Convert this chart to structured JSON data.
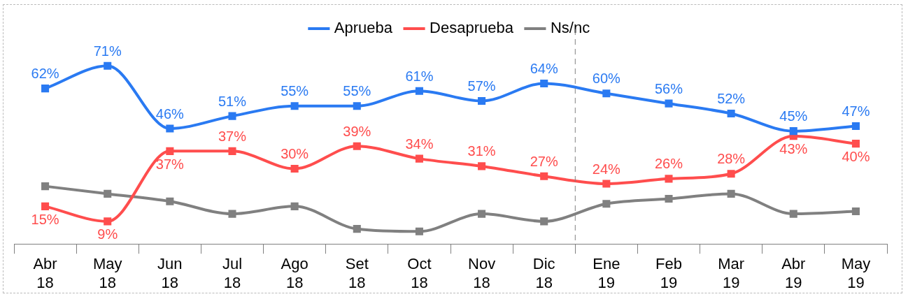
{
  "chart_data": {
    "type": "line",
    "categories": [
      "Abr 18",
      "May 18",
      "Jun 18",
      "Jul 18",
      "Ago 18",
      "Set 18",
      "Oct 18",
      "Nov 18",
      "Dic 18",
      "Ene 19",
      "Feb 19",
      "Mar 19",
      "Abr 19",
      "May 19"
    ],
    "series": [
      {
        "name": "Aprueba",
        "color": "#2a7af2",
        "values": [
          62,
          71,
          46,
          51,
          55,
          55,
          61,
          57,
          64,
          60,
          56,
          52,
          45,
          47
        ],
        "value_labels": [
          "62%",
          "71%",
          "46%",
          "51%",
          "55%",
          "55%",
          "61%",
          "57%",
          "64%",
          "60%",
          "56%",
          "52%",
          "45%",
          "47%"
        ]
      },
      {
        "name": "Desaprueba",
        "color": "#ff4d4d",
        "values": [
          15,
          9,
          37,
          37,
          30,
          39,
          34,
          31,
          27,
          24,
          26,
          28,
          43,
          40
        ],
        "value_labels": [
          "15%",
          "9%",
          "37%",
          "37%",
          "30%",
          "39%",
          "34%",
          "31%",
          "27%",
          "24%",
          "26%",
          "28%",
          "43%",
          "40%"
        ]
      },
      {
        "name": "Ns/nc",
        "color": "#808080",
        "values": [
          23,
          20,
          17,
          12,
          15,
          6,
          5,
          12,
          9,
          16,
          18,
          20,
          12,
          13
        ]
      }
    ],
    "tick_labels": "x",
    "legend": "top",
    "marker": "square",
    "line_style": "solid",
    "grid": false
  }
}
